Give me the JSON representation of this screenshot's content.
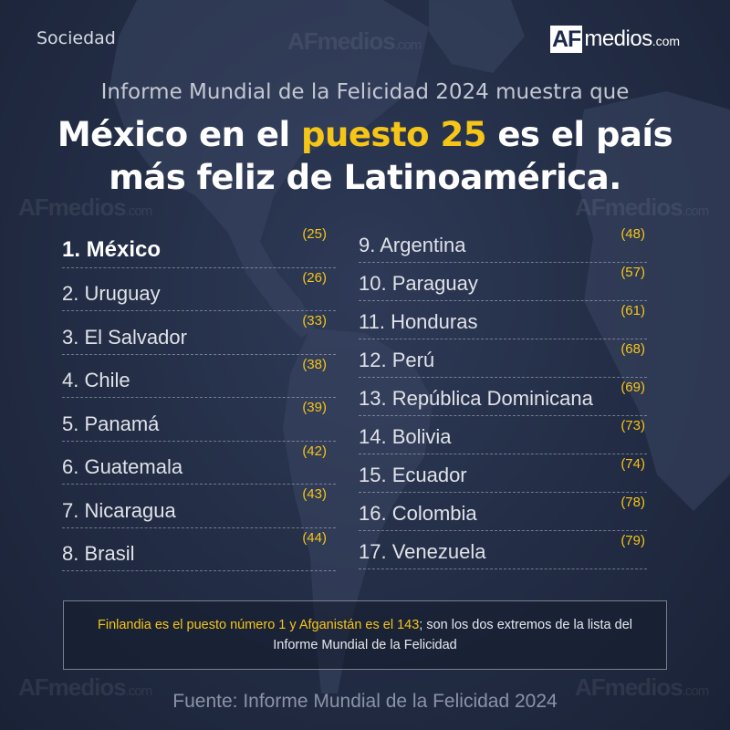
{
  "header": {
    "section": "Sociedad",
    "logo": {
      "af": "AF",
      "medios": "medios",
      "com": ".com"
    }
  },
  "watermark": {
    "af": "AF",
    "medios": "medios",
    "com": ".com"
  },
  "title": {
    "subtitle": "Informe Mundial de la Felicidad 2024 muestra que",
    "line1_pre": "México en el ",
    "line1_highlight": "puesto 25",
    "line1_post": " es el país",
    "line2": "más feliz de Latinoamérica."
  },
  "ranking": {
    "left": [
      {
        "name": "1. México",
        "rank": "(25)"
      },
      {
        "name": "2. Uruguay",
        "rank": "(26)"
      },
      {
        "name": "3. El Salvador",
        "rank": "(33)"
      },
      {
        "name": "4. Chile",
        "rank": "(38)"
      },
      {
        "name": "5. Panamá",
        "rank": "(39)"
      },
      {
        "name": "6. Guatemala",
        "rank": "(42)"
      },
      {
        "name": "7. Nicaragua",
        "rank": "(43)"
      },
      {
        "name": "8. Brasil",
        "rank": "(44)"
      }
    ],
    "right": [
      {
        "name": "9. Argentina",
        "rank": "(48)"
      },
      {
        "name": "10. Paraguay",
        "rank": "(57)"
      },
      {
        "name": "11. Honduras",
        "rank": "(61)"
      },
      {
        "name": "12. Perú",
        "rank": "(68)"
      },
      {
        "name": "13. República Dominicana",
        "rank": "(69)"
      },
      {
        "name": "14. Bolivia",
        "rank": "(73)"
      },
      {
        "name": "15. Ecuador",
        "rank": "(74)"
      },
      {
        "name": "16. Colombia",
        "rank": "(78)"
      },
      {
        "name": "17. Venezuela",
        "rank": "(79)"
      }
    ]
  },
  "note": {
    "highlight": "Finlandia es el puesto número 1 y Afganistán es el 143",
    "rest": "; son los dos extremos de la lista del Informe Mundial de la Felicidad"
  },
  "source": "Fuente: Informe Mundial de la Felicidad 2024",
  "colors": {
    "background": "#222c44",
    "accent": "#f5c518",
    "text": "#dfe2e8"
  }
}
